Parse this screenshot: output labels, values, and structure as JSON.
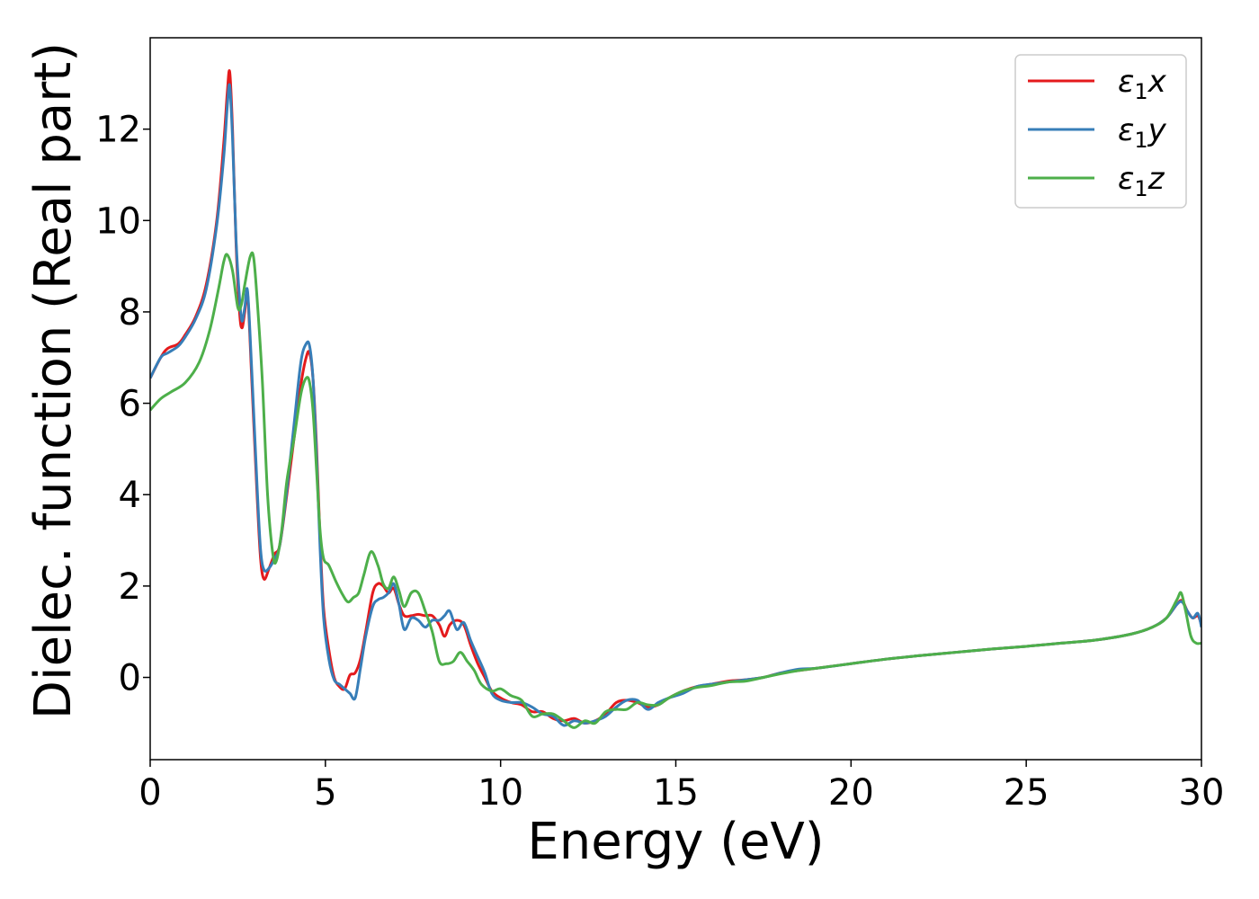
{
  "chart_data": {
    "type": "line",
    "xlabel": "Energy (eV)",
    "ylabel": "Dielec. function (Real part)",
    "xlim": [
      0,
      30
    ],
    "ylim": [
      -1.8,
      14
    ],
    "xticks": [
      "0",
      "5",
      "10",
      "15",
      "20",
      "25",
      "30"
    ],
    "yticks": [
      "0",
      "2",
      "4",
      "6",
      "8",
      "10",
      "12"
    ],
    "grid": false,
    "legend_position": "top-right",
    "series": [
      {
        "name": "ε₁x",
        "name_main": "ε",
        "name_sub": "1",
        "name_suffix": "x",
        "color": "#e41a1c",
        "points": [
          [
            0,
            6.55
          ],
          [
            0.3,
            7.0
          ],
          [
            0.5,
            7.2
          ],
          [
            0.8,
            7.3
          ],
          [
            1.0,
            7.5
          ],
          [
            1.3,
            7.9
          ],
          [
            1.6,
            8.6
          ],
          [
            1.9,
            10.0
          ],
          [
            2.1,
            11.7
          ],
          [
            2.2,
            12.8
          ],
          [
            2.27,
            13.25
          ],
          [
            2.35,
            12.0
          ],
          [
            2.45,
            9.5
          ],
          [
            2.55,
            8.0
          ],
          [
            2.62,
            7.65
          ],
          [
            2.7,
            8.0
          ],
          [
            2.78,
            8.4
          ],
          [
            2.9,
            6.5
          ],
          [
            3.05,
            4.0
          ],
          [
            3.15,
            2.6
          ],
          [
            3.25,
            2.15
          ],
          [
            3.4,
            2.4
          ],
          [
            3.55,
            2.7
          ],
          [
            3.7,
            2.9
          ],
          [
            3.9,
            4.0
          ],
          [
            4.1,
            5.2
          ],
          [
            4.3,
            6.4
          ],
          [
            4.45,
            7.0
          ],
          [
            4.55,
            7.1
          ],
          [
            4.65,
            6.5
          ],
          [
            4.75,
            5.0
          ],
          [
            4.85,
            3.0
          ],
          [
            4.95,
            1.5
          ],
          [
            5.1,
            0.6
          ],
          [
            5.25,
            0.0
          ],
          [
            5.4,
            -0.2
          ],
          [
            5.55,
            -0.25
          ],
          [
            5.7,
            0.05
          ],
          [
            5.85,
            0.1
          ],
          [
            6.0,
            0.4
          ],
          [
            6.15,
            1.0
          ],
          [
            6.35,
            1.85
          ],
          [
            6.5,
            2.05
          ],
          [
            6.65,
            2.0
          ],
          [
            6.8,
            1.85
          ],
          [
            6.95,
            1.95
          ],
          [
            7.1,
            1.6
          ],
          [
            7.25,
            1.35
          ],
          [
            7.45,
            1.35
          ],
          [
            7.65,
            1.38
          ],
          [
            7.85,
            1.35
          ],
          [
            8.05,
            1.35
          ],
          [
            8.25,
            1.15
          ],
          [
            8.4,
            0.9
          ],
          [
            8.55,
            1.15
          ],
          [
            8.75,
            1.25
          ],
          [
            8.95,
            1.15
          ],
          [
            9.15,
            0.7
          ],
          [
            9.35,
            0.3
          ],
          [
            9.55,
            0.0
          ],
          [
            9.75,
            -0.3
          ],
          [
            10.0,
            -0.45
          ],
          [
            10.3,
            -0.55
          ],
          [
            10.6,
            -0.6
          ],
          [
            10.9,
            -0.75
          ],
          [
            11.2,
            -0.75
          ],
          [
            11.5,
            -0.9
          ],
          [
            11.8,
            -0.95
          ],
          [
            12.1,
            -0.9
          ],
          [
            12.4,
            -1.0
          ],
          [
            12.7,
            -0.95
          ],
          [
            13.0,
            -0.8
          ],
          [
            13.3,
            -0.55
          ],
          [
            13.6,
            -0.5
          ],
          [
            13.9,
            -0.55
          ],
          [
            14.2,
            -0.65
          ],
          [
            14.5,
            -0.6
          ],
          [
            14.8,
            -0.45
          ],
          [
            15.2,
            -0.3
          ],
          [
            15.6,
            -0.2
          ],
          [
            16.0,
            -0.15
          ],
          [
            16.5,
            -0.08
          ],
          [
            17.0,
            -0.05
          ],
          [
            17.5,
            0.0
          ],
          [
            18.0,
            0.1
          ],
          [
            18.5,
            0.15
          ],
          [
            19.0,
            0.2
          ],
          [
            20.0,
            0.3
          ],
          [
            21.0,
            0.4
          ],
          [
            22.0,
            0.48
          ],
          [
            23.0,
            0.55
          ],
          [
            24.0,
            0.62
          ],
          [
            25.0,
            0.68
          ],
          [
            26.0,
            0.75
          ],
          [
            27.0,
            0.82
          ],
          [
            28.0,
            0.95
          ],
          [
            28.6,
            1.1
          ],
          [
            29.0,
            1.3
          ],
          [
            29.3,
            1.6
          ],
          [
            29.45,
            1.68
          ],
          [
            29.6,
            1.45
          ],
          [
            29.75,
            1.3
          ],
          [
            29.9,
            1.35
          ],
          [
            30,
            1.15
          ]
        ]
      },
      {
        "name": "ε₁y",
        "name_main": "ε",
        "name_sub": "1",
        "name_suffix": "y",
        "color": "#377eb8",
        "points": [
          [
            0,
            6.55
          ],
          [
            0.3,
            7.0
          ],
          [
            0.5,
            7.1
          ],
          [
            0.8,
            7.25
          ],
          [
            1.0,
            7.45
          ],
          [
            1.3,
            7.85
          ],
          [
            1.6,
            8.5
          ],
          [
            1.9,
            9.9
          ],
          [
            2.1,
            11.4
          ],
          [
            2.2,
            12.5
          ],
          [
            2.27,
            12.95
          ],
          [
            2.35,
            11.8
          ],
          [
            2.45,
            9.6
          ],
          [
            2.55,
            8.3
          ],
          [
            2.62,
            7.8
          ],
          [
            2.7,
            8.1
          ],
          [
            2.78,
            8.45
          ],
          [
            2.9,
            6.7
          ],
          [
            3.05,
            4.2
          ],
          [
            3.15,
            2.8
          ],
          [
            3.25,
            2.35
          ],
          [
            3.4,
            2.4
          ],
          [
            3.55,
            2.6
          ],
          [
            3.7,
            2.9
          ],
          [
            3.9,
            4.1
          ],
          [
            4.1,
            5.5
          ],
          [
            4.3,
            6.9
          ],
          [
            4.45,
            7.3
          ],
          [
            4.55,
            7.25
          ],
          [
            4.65,
            6.5
          ],
          [
            4.75,
            4.8
          ],
          [
            4.85,
            2.8
          ],
          [
            4.95,
            1.3
          ],
          [
            5.1,
            0.4
          ],
          [
            5.25,
            -0.05
          ],
          [
            5.4,
            -0.15
          ],
          [
            5.55,
            -0.25
          ],
          [
            5.7,
            -0.35
          ],
          [
            5.85,
            -0.45
          ],
          [
            6.0,
            0.2
          ],
          [
            6.15,
            0.9
          ],
          [
            6.35,
            1.55
          ],
          [
            6.5,
            1.7
          ],
          [
            6.65,
            1.75
          ],
          [
            6.8,
            1.85
          ],
          [
            6.95,
            2.05
          ],
          [
            7.1,
            1.6
          ],
          [
            7.25,
            1.05
          ],
          [
            7.45,
            1.3
          ],
          [
            7.65,
            1.25
          ],
          [
            7.85,
            1.1
          ],
          [
            8.05,
            1.25
          ],
          [
            8.25,
            1.25
          ],
          [
            8.4,
            1.35
          ],
          [
            8.55,
            1.45
          ],
          [
            8.75,
            1.05
          ],
          [
            8.95,
            1.2
          ],
          [
            9.15,
            0.8
          ],
          [
            9.35,
            0.45
          ],
          [
            9.55,
            0.1
          ],
          [
            9.75,
            -0.35
          ],
          [
            10.0,
            -0.5
          ],
          [
            10.3,
            -0.55
          ],
          [
            10.6,
            -0.55
          ],
          [
            10.9,
            -0.65
          ],
          [
            11.2,
            -0.8
          ],
          [
            11.5,
            -0.85
          ],
          [
            11.8,
            -1.05
          ],
          [
            12.1,
            -0.95
          ],
          [
            12.4,
            -1.0
          ],
          [
            12.7,
            -0.95
          ],
          [
            13.0,
            -0.85
          ],
          [
            13.3,
            -0.65
          ],
          [
            13.6,
            -0.5
          ],
          [
            13.9,
            -0.5
          ],
          [
            14.2,
            -0.7
          ],
          [
            14.5,
            -0.55
          ],
          [
            14.8,
            -0.45
          ],
          [
            15.2,
            -0.35
          ],
          [
            15.6,
            -0.2
          ],
          [
            16.0,
            -0.15
          ],
          [
            16.5,
            -0.1
          ],
          [
            17.0,
            -0.05
          ],
          [
            17.5,
            0.0
          ],
          [
            18.0,
            0.1
          ],
          [
            18.5,
            0.18
          ],
          [
            19.0,
            0.2
          ],
          [
            20.0,
            0.3
          ],
          [
            21.0,
            0.4
          ],
          [
            22.0,
            0.48
          ],
          [
            23.0,
            0.55
          ],
          [
            24.0,
            0.62
          ],
          [
            25.0,
            0.68
          ],
          [
            26.0,
            0.75
          ],
          [
            27.0,
            0.82
          ],
          [
            28.0,
            0.95
          ],
          [
            28.6,
            1.1
          ],
          [
            29.0,
            1.3
          ],
          [
            29.3,
            1.6
          ],
          [
            29.45,
            1.65
          ],
          [
            29.6,
            1.45
          ],
          [
            29.75,
            1.3
          ],
          [
            29.9,
            1.4
          ],
          [
            30,
            1.1
          ]
        ]
      },
      {
        "name": "ε₁z",
        "name_main": "ε",
        "name_sub": "1",
        "name_suffix": "z",
        "color": "#4daf4a",
        "points": [
          [
            0,
            5.85
          ],
          [
            0.3,
            6.1
          ],
          [
            0.6,
            6.25
          ],
          [
            1.0,
            6.45
          ],
          [
            1.4,
            6.9
          ],
          [
            1.7,
            7.6
          ],
          [
            1.95,
            8.5
          ],
          [
            2.1,
            9.1
          ],
          [
            2.2,
            9.25
          ],
          [
            2.35,
            8.9
          ],
          [
            2.5,
            8.1
          ],
          [
            2.6,
            8.15
          ],
          [
            2.7,
            8.6
          ],
          [
            2.85,
            9.2
          ],
          [
            2.95,
            9.2
          ],
          [
            3.05,
            8.3
          ],
          [
            3.2,
            6.5
          ],
          [
            3.35,
            4.0
          ],
          [
            3.5,
            2.7
          ],
          [
            3.6,
            2.55
          ],
          [
            3.75,
            3.2
          ],
          [
            3.9,
            4.3
          ],
          [
            4.1,
            5.2
          ],
          [
            4.3,
            6.2
          ],
          [
            4.45,
            6.55
          ],
          [
            4.55,
            6.45
          ],
          [
            4.65,
            5.8
          ],
          [
            4.75,
            4.5
          ],
          [
            4.85,
            3.2
          ],
          [
            4.95,
            2.6
          ],
          [
            5.1,
            2.45
          ],
          [
            5.3,
            2.1
          ],
          [
            5.5,
            1.8
          ],
          [
            5.65,
            1.65
          ],
          [
            5.8,
            1.75
          ],
          [
            5.95,
            1.85
          ],
          [
            6.1,
            2.25
          ],
          [
            6.3,
            2.75
          ],
          [
            6.5,
            2.45
          ],
          [
            6.65,
            2.05
          ],
          [
            6.8,
            1.95
          ],
          [
            6.95,
            2.2
          ],
          [
            7.1,
            1.9
          ],
          [
            7.25,
            1.55
          ],
          [
            7.45,
            1.85
          ],
          [
            7.65,
            1.85
          ],
          [
            7.85,
            1.45
          ],
          [
            8.05,
            1.0
          ],
          [
            8.25,
            0.35
          ],
          [
            8.45,
            0.3
          ],
          [
            8.65,
            0.35
          ],
          [
            8.85,
            0.55
          ],
          [
            9.05,
            0.35
          ],
          [
            9.25,
            0.15
          ],
          [
            9.45,
            -0.15
          ],
          [
            9.75,
            -0.3
          ],
          [
            10.0,
            -0.25
          ],
          [
            10.3,
            -0.4
          ],
          [
            10.6,
            -0.5
          ],
          [
            10.9,
            -0.85
          ],
          [
            11.2,
            -0.8
          ],
          [
            11.5,
            -0.8
          ],
          [
            11.8,
            -0.95
          ],
          [
            12.1,
            -1.1
          ],
          [
            12.4,
            -0.95
          ],
          [
            12.7,
            -1.0
          ],
          [
            13.0,
            -0.75
          ],
          [
            13.3,
            -0.7
          ],
          [
            13.6,
            -0.7
          ],
          [
            13.9,
            -0.55
          ],
          [
            14.2,
            -0.6
          ],
          [
            14.5,
            -0.6
          ],
          [
            14.8,
            -0.45
          ],
          [
            15.2,
            -0.3
          ],
          [
            15.6,
            -0.22
          ],
          [
            16.0,
            -0.18
          ],
          [
            16.5,
            -0.1
          ],
          [
            17.0,
            -0.08
          ],
          [
            17.5,
            0.0
          ],
          [
            18.0,
            0.08
          ],
          [
            18.5,
            0.15
          ],
          [
            19.0,
            0.2
          ],
          [
            20.0,
            0.3
          ],
          [
            21.0,
            0.4
          ],
          [
            22.0,
            0.48
          ],
          [
            23.0,
            0.55
          ],
          [
            24.0,
            0.62
          ],
          [
            25.0,
            0.68
          ],
          [
            26.0,
            0.75
          ],
          [
            27.0,
            0.82
          ],
          [
            28.0,
            0.95
          ],
          [
            28.6,
            1.1
          ],
          [
            29.0,
            1.3
          ],
          [
            29.3,
            1.7
          ],
          [
            29.42,
            1.85
          ],
          [
            29.55,
            1.45
          ],
          [
            29.7,
            0.9
          ],
          [
            29.85,
            0.75
          ],
          [
            30,
            0.75
          ]
        ]
      }
    ]
  }
}
